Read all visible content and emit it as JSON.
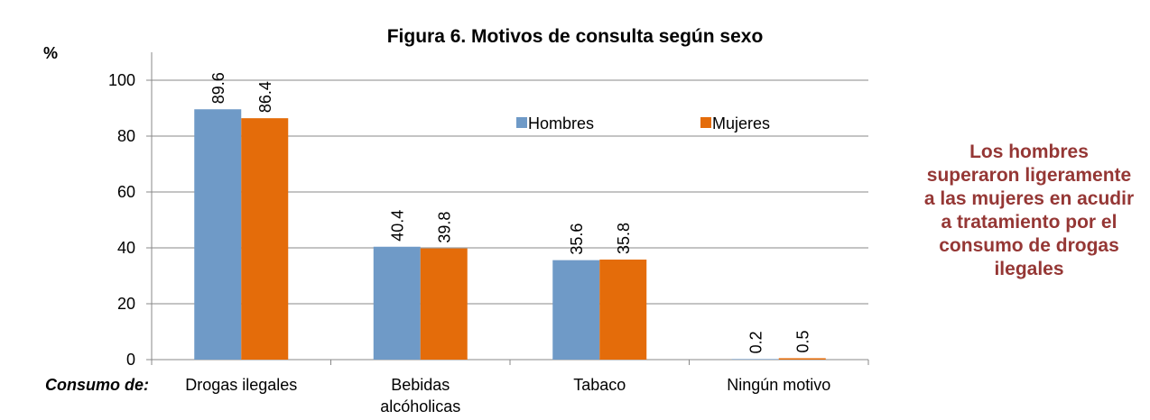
{
  "chart_data": {
    "type": "bar",
    "title": "Figura 6. Motivos de consulta según sexo",
    "y_label": "%",
    "x_label": "Consumo de:",
    "categories": [
      "Drogas ilegales",
      "Bebidas alcóholicas",
      "Tabaco",
      "Ningún motivo"
    ],
    "series": [
      {
        "name": "Hombres",
        "color": "#6f9ac7",
        "values": [
          89.6,
          40.4,
          35.6,
          0.2
        ]
      },
      {
        "name": "Mujeres",
        "color": "#e46c0a",
        "values": [
          86.4,
          39.8,
          35.8,
          0.5
        ]
      }
    ],
    "ylim": [
      0,
      110
    ],
    "yticks": [
      0,
      20,
      40,
      60,
      80,
      100
    ],
    "grid": true,
    "legend": "top-right",
    "annotation": "Los hombres superaron ligeramente a las mujeres en acudir a tratamiento por el consumo de drogas ilegales"
  }
}
